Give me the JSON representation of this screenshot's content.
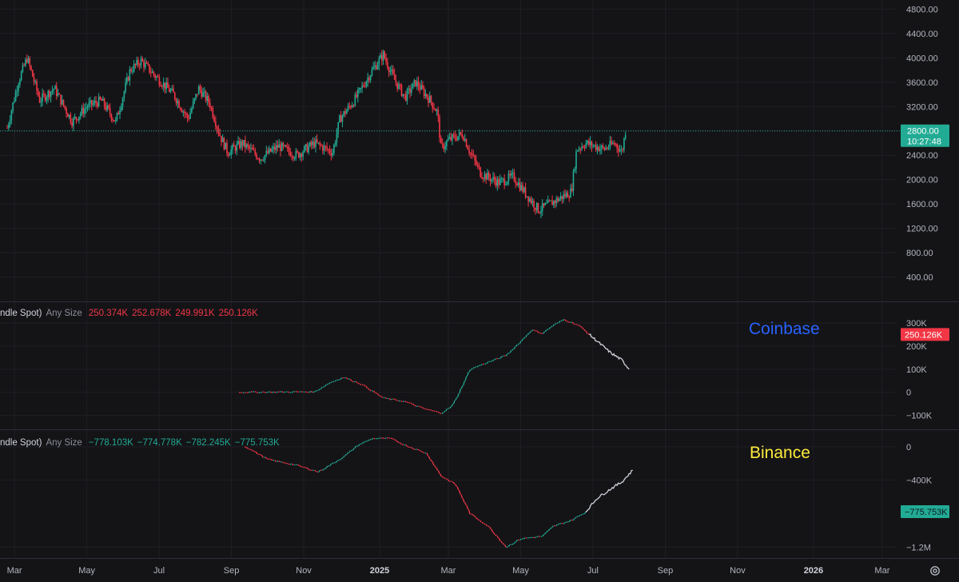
{
  "chart_data": [
    {
      "type": "candlestick",
      "title": "",
      "ylim": [
        0,
        4950
      ],
      "yticks": [
        "4800.00",
        "4400.00",
        "4000.00",
        "3600.00",
        "3200.00",
        "2800.00",
        "2400.00",
        "2000.00",
        "1600.00",
        "1200.00",
        "800.00",
        "400.00"
      ],
      "ytick_values": [
        4800,
        4400,
        4000,
        3600,
        3200,
        2800,
        2400,
        2000,
        1600,
        1200,
        800,
        400
      ],
      "last_price": "2800.00",
      "last_price_value": 2800,
      "countdown": "10:27:48",
      "path": [
        {
          "t": 0.0,
          "v": 2850
        },
        {
          "t": 0.3,
          "v": 3600
        },
        {
          "t": 0.55,
          "v": 4000
        },
        {
          "t": 0.9,
          "v": 3300
        },
        {
          "t": 1.3,
          "v": 3500
        },
        {
          "t": 1.8,
          "v": 2950
        },
        {
          "t": 2.2,
          "v": 3200
        },
        {
          "t": 2.6,
          "v": 3300
        },
        {
          "t": 3.0,
          "v": 2950
        },
        {
          "t": 3.4,
          "v": 3800
        },
        {
          "t": 3.7,
          "v": 3950
        },
        {
          "t": 4.1,
          "v": 3700
        },
        {
          "t": 4.6,
          "v": 3400
        },
        {
          "t": 5.0,
          "v": 3000
        },
        {
          "t": 5.3,
          "v": 3500
        },
        {
          "t": 5.6,
          "v": 3250
        },
        {
          "t": 5.9,
          "v": 2700
        },
        {
          "t": 6.1,
          "v": 2450
        },
        {
          "t": 6.5,
          "v": 2600
        },
        {
          "t": 7.0,
          "v": 2350
        },
        {
          "t": 7.5,
          "v": 2550
        },
        {
          "t": 8.0,
          "v": 2400
        },
        {
          "t": 8.5,
          "v": 2600
        },
        {
          "t": 9.0,
          "v": 2450
        },
        {
          "t": 9.2,
          "v": 3000
        },
        {
          "t": 9.6,
          "v": 3300
        },
        {
          "t": 10.1,
          "v": 3800
        },
        {
          "t": 10.4,
          "v": 4050
        },
        {
          "t": 10.7,
          "v": 3650
        },
        {
          "t": 11.0,
          "v": 3350
        },
        {
          "t": 11.3,
          "v": 3600
        },
        {
          "t": 11.7,
          "v": 3300
        },
        {
          "t": 11.9,
          "v": 3100
        },
        {
          "t": 12.0,
          "v": 2500
        },
        {
          "t": 12.2,
          "v": 2650
        },
        {
          "t": 12.6,
          "v": 2750
        },
        {
          "t": 12.8,
          "v": 2450
        },
        {
          "t": 13.1,
          "v": 2100
        },
        {
          "t": 13.6,
          "v": 1950
        },
        {
          "t": 14.0,
          "v": 2050
        },
        {
          "t": 14.3,
          "v": 1800
        },
        {
          "t": 14.7,
          "v": 1500
        },
        {
          "t": 15.0,
          "v": 1600
        },
        {
          "t": 15.3,
          "v": 1700
        },
        {
          "t": 15.6,
          "v": 1800
        },
        {
          "t": 15.75,
          "v": 2500
        },
        {
          "t": 16.0,
          "v": 2600
        },
        {
          "t": 16.5,
          "v": 2500
        },
        {
          "t": 16.8,
          "v": 2600
        },
        {
          "t": 17.0,
          "v": 2450
        },
        {
          "t": 17.1,
          "v": 2800
        }
      ]
    },
    {
      "type": "line",
      "exchange": "Coinbase",
      "ylim": [
        -160000,
        390000
      ],
      "yticks": [
        "300K",
        "200K",
        "100K",
        "0",
        "−100K"
      ],
      "ytick_values": [
        300000,
        200000,
        100000,
        0,
        -100000
      ],
      "current_value": "250.126K",
      "current_value_num": 250126,
      "series": [
        {
          "color": "candles",
          "points": [
            {
              "t": 6.45,
              "v": 0
            },
            {
              "t": 8.5,
              "v": 2000
            },
            {
              "t": 8.9,
              "v": 40000
            },
            {
              "t": 9.3,
              "v": 65000
            },
            {
              "t": 9.8,
              "v": 35000
            },
            {
              "t": 10.4,
              "v": -25000
            },
            {
              "t": 11.0,
              "v": -40000
            },
            {
              "t": 11.5,
              "v": -70000
            },
            {
              "t": 12.0,
              "v": -90000
            },
            {
              "t": 12.3,
              "v": -60000
            },
            {
              "t": 12.5,
              "v": 0
            },
            {
              "t": 12.8,
              "v": 100000
            },
            {
              "t": 13.3,
              "v": 130000
            },
            {
              "t": 13.8,
              "v": 160000
            },
            {
              "t": 14.2,
              "v": 220000
            },
            {
              "t": 14.5,
              "v": 270000
            },
            {
              "t": 14.8,
              "v": 255000
            },
            {
              "t": 15.1,
              "v": 290000
            },
            {
              "t": 15.4,
              "v": 315000
            },
            {
              "t": 15.8,
              "v": 290000
            },
            {
              "t": 16.1,
              "v": 250000
            }
          ]
        },
        {
          "color": "#d1d4dc",
          "points": [
            {
              "t": 16.1,
              "v": 250000
            },
            {
              "t": 16.4,
              "v": 210000
            },
            {
              "t": 16.7,
              "v": 170000
            },
            {
              "t": 17.0,
              "v": 140000
            },
            {
              "t": 17.2,
              "v": 100000
            }
          ]
        }
      ]
    },
    {
      "type": "line",
      "exchange": "Binance",
      "ylim": [
        -1330000,
        200000
      ],
      "yticks": [
        "0",
        "−400K",
        "−1.2M"
      ],
      "ytick_values": [
        0,
        -400000,
        -1200000
      ],
      "current_value": "−775.753K",
      "current_value_num": -775753,
      "series": [
        {
          "color": "candles",
          "points": [
            {
              "t": 6.6,
              "v": 0
            },
            {
              "t": 7.2,
              "v": -150000
            },
            {
              "t": 8.0,
              "v": -220000
            },
            {
              "t": 8.6,
              "v": -300000
            },
            {
              "t": 9.0,
              "v": -200000
            },
            {
              "t": 9.3,
              "v": -120000
            },
            {
              "t": 9.7,
              "v": 20000
            },
            {
              "t": 10.1,
              "v": 100000
            },
            {
              "t": 10.6,
              "v": 100000
            },
            {
              "t": 11.0,
              "v": 20000
            },
            {
              "t": 11.6,
              "v": -80000
            },
            {
              "t": 12.0,
              "v": -350000
            },
            {
              "t": 12.4,
              "v": -450000
            },
            {
              "t": 12.8,
              "v": -800000
            },
            {
              "t": 13.3,
              "v": -950000
            },
            {
              "t": 13.8,
              "v": -1200000
            },
            {
              "t": 14.2,
              "v": -1100000
            },
            {
              "t": 14.8,
              "v": -1070000
            },
            {
              "t": 15.1,
              "v": -950000
            },
            {
              "t": 15.6,
              "v": -880000
            },
            {
              "t": 16.0,
              "v": -780000
            }
          ]
        },
        {
          "color": "#d1d4dc",
          "points": [
            {
              "t": 16.0,
              "v": -780000
            },
            {
              "t": 16.3,
              "v": -620000
            },
            {
              "t": 16.7,
              "v": -500000
            },
            {
              "t": 17.0,
              "v": -420000
            },
            {
              "t": 17.3,
              "v": -280000
            }
          ]
        }
      ]
    }
  ],
  "x_axis": {
    "labels": [
      "Mar",
      "May",
      "Jul",
      "Sep",
      "Nov",
      "2025",
      "Mar",
      "May",
      "Jul",
      "Sep",
      "Nov",
      "2026",
      "Mar"
    ],
    "label_values": [
      0.2,
      2.2,
      4.2,
      6.2,
      8.2,
      10.3,
      12.2,
      14.2,
      16.2,
      18.2,
      20.2,
      22.3,
      24.2
    ],
    "bold": [
      "2025",
      "2026"
    ],
    "xlim": [
      -0.2,
      24.6
    ]
  },
  "panes": {
    "coinbase_legend": {
      "name": "ndle Spot)",
      "sub": "Any Size",
      "values": [
        "250.374K",
        "252.678K",
        "249.991K",
        "250.126K"
      ]
    },
    "binance_legend": {
      "name": "ndle Spot)",
      "sub": "Any Size",
      "values": [
        "−778.103K",
        "−774.778K",
        "−782.245K",
        "−775.753K"
      ]
    },
    "coinbase_label": "Coinbase",
    "binance_label": "Binance"
  },
  "colors": {
    "up": "#22ab94",
    "down": "#f23645",
    "coinbase": "#2962ff",
    "binance": "#ffeb3b",
    "grid": "#1f1f24",
    "price_tag": "#22ab94",
    "coinbase_tag": "#f23645",
    "binance_tag": "#22ab94"
  },
  "icons": {
    "settings": "gear-icon"
  }
}
